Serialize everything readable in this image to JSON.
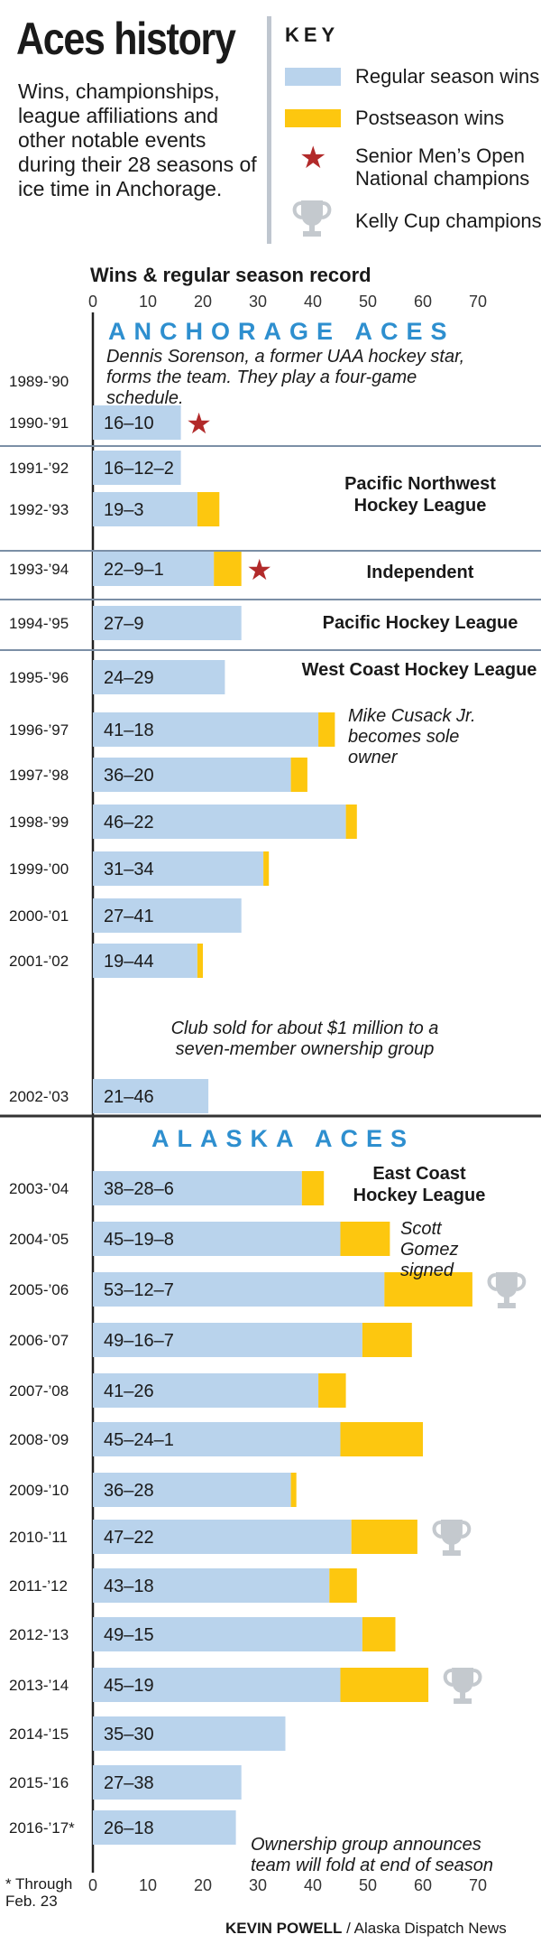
{
  "header": {
    "title": "Aces history",
    "subtitle": "Wins, championships, league affiliations and other notable events during their 28 seasons of ice time in Anchorage."
  },
  "key": {
    "title": "KEY",
    "regular_label": "Regular season wins",
    "post_label": "Postseason wins",
    "national_label": "Senior Men’s Open National champions",
    "kelly_label": "Kelly Cup champions"
  },
  "colors": {
    "regular": "#b9d3ec",
    "postseason": "#fdc70f",
    "star": "#b22a2a",
    "trophy": "#c4c9ce",
    "divider": "#7b8fa6",
    "era": "#2e8fcf"
  },
  "eras": {
    "anchorage": "ANCHORAGE ACES",
    "alaska": "ALASKA ACES"
  },
  "notes": {
    "sorenson": "Dennis Sorenson, a former UAA hockey star, forms the team. They play a four-game schedule.",
    "cusack": "Mike Cusack Jr. becomes sole owner",
    "sold": "Club sold for about $1 million to a seven-member ownership group",
    "gomez": "Scott Gomez signed",
    "fold": "Ownership group announces team will fold at end of season"
  },
  "leagues": {
    "pnw": "Pacific Northwest Hockey League",
    "independent": "Independent",
    "phl": "Pacific Hockey League",
    "wchl": "West Coast Hockey League",
    "echl": "East Coast Hockey League"
  },
  "footnote": "* Through Feb. 23",
  "credit": {
    "author": "KEVIN POWELL",
    "source": " / Alaska Dispatch News"
  },
  "chart_data": {
    "type": "bar",
    "stacked": true,
    "orientation": "horizontal",
    "title": "Wins & regular season record",
    "xlim": [
      0,
      70
    ],
    "xticks": [
      0,
      10,
      20,
      30,
      40,
      50,
      60,
      70
    ],
    "seasons": [
      {
        "season": "1989-’90",
        "record": "",
        "regular": 0,
        "post": 0
      },
      {
        "season": "1990-’91",
        "record": "16–10",
        "regular": 16,
        "post": 0,
        "national": true
      },
      {
        "season": "1991-’92",
        "record": "16–12–2",
        "regular": 16,
        "post": 0
      },
      {
        "season": "1992-’93",
        "record": "19–3",
        "regular": 19,
        "post": 4
      },
      {
        "season": "1993-’94",
        "record": "22–9–1",
        "regular": 22,
        "post": 5,
        "national": true
      },
      {
        "season": "1994-’95",
        "record": "27–9",
        "regular": 27,
        "post": 0
      },
      {
        "season": "1995-’96",
        "record": "24–29",
        "regular": 24,
        "post": 0
      },
      {
        "season": "1996-’97",
        "record": "41–18",
        "regular": 41,
        "post": 3
      },
      {
        "season": "1997-’98",
        "record": "36–20",
        "regular": 36,
        "post": 3
      },
      {
        "season": "1998-’99",
        "record": "46–22",
        "regular": 46,
        "post": 2
      },
      {
        "season": "1999-’00",
        "record": "31–34",
        "regular": 31,
        "post": 1
      },
      {
        "season": "2000-’01",
        "record": "27–41",
        "regular": 27,
        "post": 0
      },
      {
        "season": "2001-’02",
        "record": "19–44",
        "regular": 19,
        "post": 1
      },
      {
        "season": "2002-’03",
        "record": "21–46",
        "regular": 21,
        "post": 0
      },
      {
        "season": "2003-’04",
        "record": "38–28–6",
        "regular": 38,
        "post": 4
      },
      {
        "season": "2004-’05",
        "record": "45–19–8",
        "regular": 45,
        "post": 9
      },
      {
        "season": "2005-’06",
        "record": "53–12–7",
        "regular": 53,
        "post": 16,
        "kelly": true
      },
      {
        "season": "2006-’07",
        "record": "49–16–7",
        "regular": 49,
        "post": 9
      },
      {
        "season": "2007-’08",
        "record": "41–26",
        "regular": 41,
        "post": 5
      },
      {
        "season": "2008-’09",
        "record": "45–24–1",
        "regular": 45,
        "post": 15
      },
      {
        "season": "2009-’10",
        "record": "36–28",
        "regular": 36,
        "post": 1
      },
      {
        "season": "2010-’11",
        "record": "47–22",
        "regular": 47,
        "post": 12,
        "kelly": true
      },
      {
        "season": "2011-’12",
        "record": "43–18",
        "regular": 43,
        "post": 5
      },
      {
        "season": "2012-’13",
        "record": "49–15",
        "regular": 49,
        "post": 6
      },
      {
        "season": "2013-’14",
        "record": "45–19",
        "regular": 45,
        "post": 16,
        "kelly": true
      },
      {
        "season": "2014-’15",
        "record": "35–30",
        "regular": 35,
        "post": 0
      },
      {
        "season": "2015-’16",
        "record": "27–38",
        "regular": 27,
        "post": 0
      },
      {
        "season": "2016-’17*",
        "record": "26–18",
        "regular": 26,
        "post": 0
      }
    ]
  }
}
